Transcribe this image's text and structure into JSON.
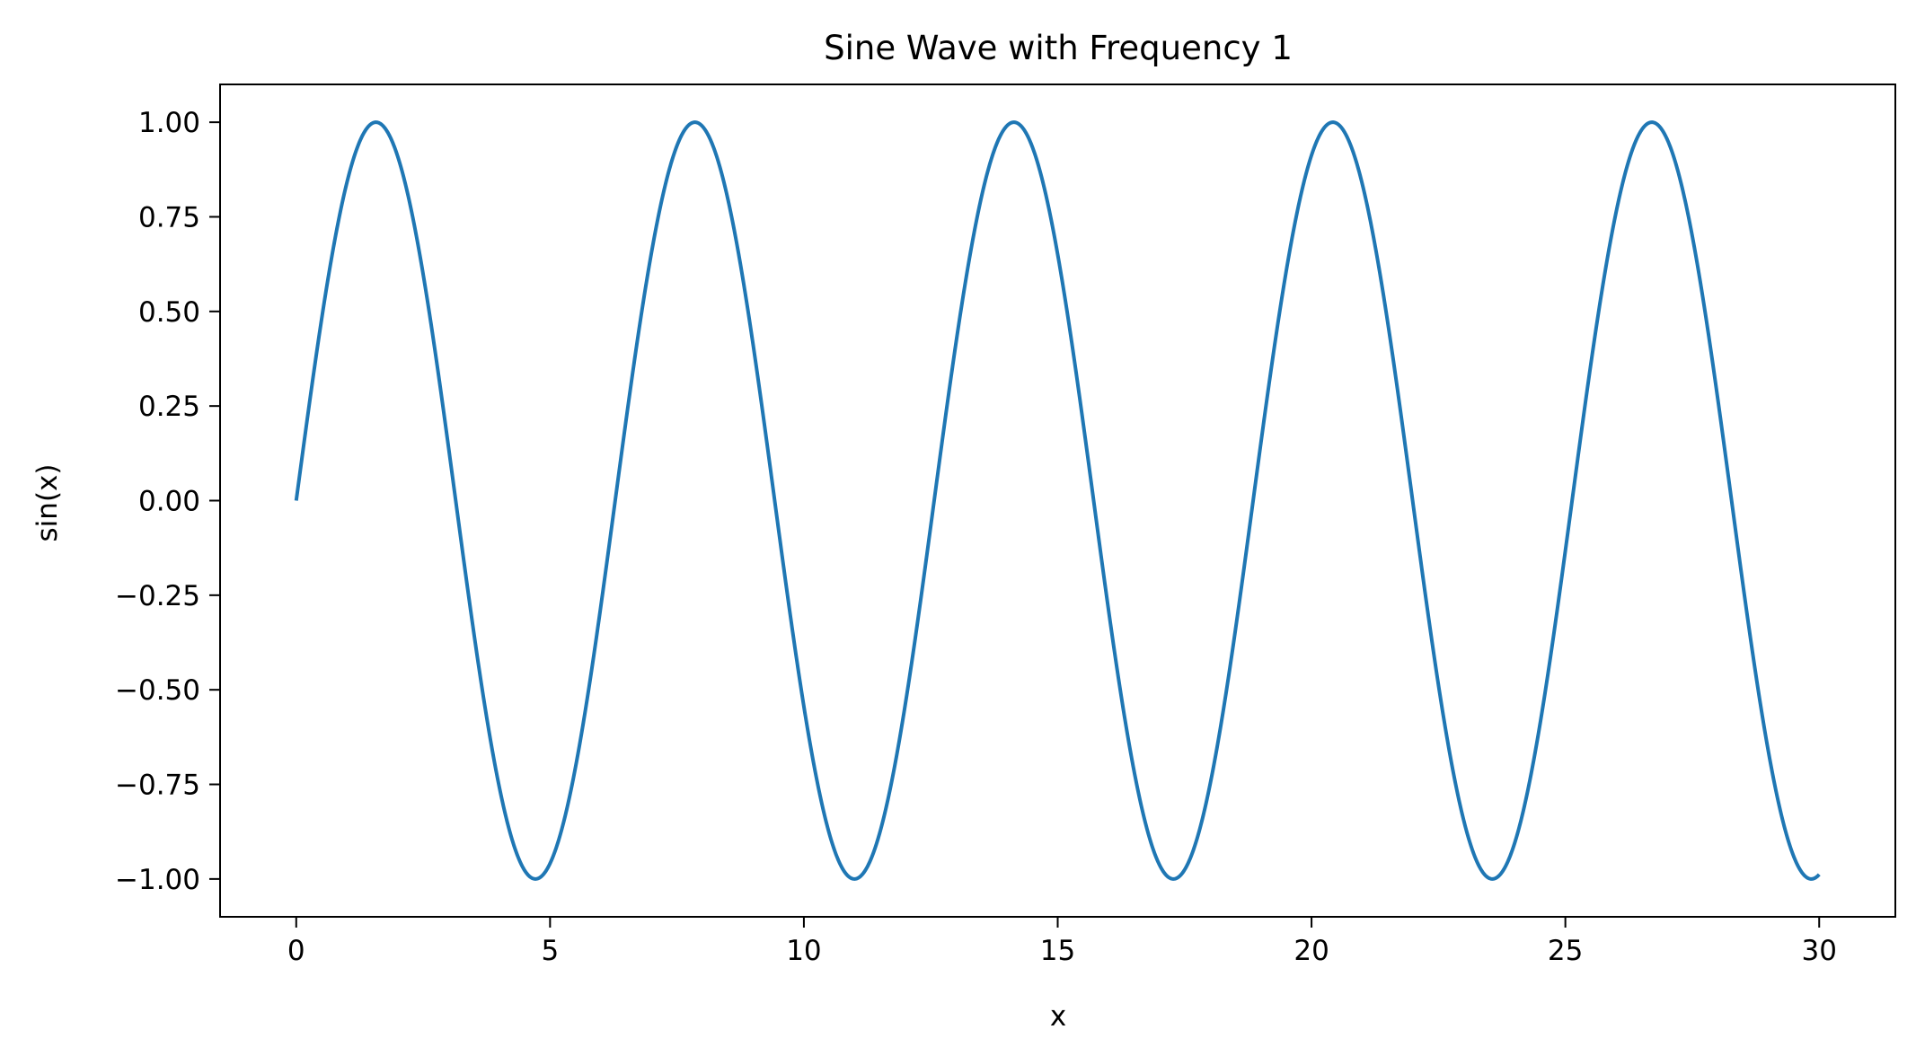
{
  "chart_data": {
    "type": "line",
    "title": "Sine Wave with Frequency 1",
    "xlabel": "x",
    "ylabel": "sin(x)",
    "xlim": [
      -1.5,
      31.5
    ],
    "ylim": [
      -1.1,
      1.1
    ],
    "grid": false,
    "legend": "none",
    "x_ticks": [
      {
        "value": 0,
        "label": "0"
      },
      {
        "value": 5,
        "label": "5"
      },
      {
        "value": 10,
        "label": "10"
      },
      {
        "value": 15,
        "label": "15"
      },
      {
        "value": 20,
        "label": "20"
      },
      {
        "value": 25,
        "label": "25"
      },
      {
        "value": 30,
        "label": "30"
      }
    ],
    "y_ticks": [
      {
        "value": 1.0,
        "label": "1.00"
      },
      {
        "value": 0.75,
        "label": "0.75"
      },
      {
        "value": 0.5,
        "label": "0.50"
      },
      {
        "value": 0.25,
        "label": "0.25"
      },
      {
        "value": 0.0,
        "label": "0.00"
      },
      {
        "value": -0.25,
        "label": "−0.25"
      },
      {
        "value": -0.5,
        "label": "−0.50"
      },
      {
        "value": -0.75,
        "label": "−0.75"
      },
      {
        "value": -1.0,
        "label": "−1.00"
      }
    ],
    "series": [
      {
        "function": "sin(x)",
        "frequency": 1,
        "x_start": 0,
        "x_end": 30,
        "color": "#1f77b4"
      }
    ]
  }
}
